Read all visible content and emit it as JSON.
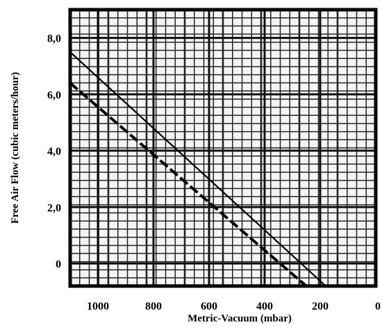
{
  "chart_data": {
    "type": "line",
    "title": "",
    "xlabel": "Metric-Vacuum (mbar)",
    "ylabel": "Free Air Flow (cubic meters/hour)",
    "x_reversed": true,
    "xlim": [
      1100,
      0
    ],
    "ylim": [
      -0.8,
      9.0
    ],
    "x_ticks": [
      {
        "value": 1000,
        "label": "1000"
      },
      {
        "value": 800,
        "label": "800"
      },
      {
        "value": 600,
        "label": "600"
      },
      {
        "value": 400,
        "label": "400"
      },
      {
        "value": 200,
        "label": "200"
      },
      {
        "value": 0,
        "label": "0"
      }
    ],
    "y_ticks": [
      {
        "value": 0,
        "label": "0"
      },
      {
        "value": 2,
        "label": "2,0"
      },
      {
        "value": 4,
        "label": "4,0"
      },
      {
        "value": 6,
        "label": "6,0"
      },
      {
        "value": 8,
        "label": "8,0"
      }
    ],
    "grid": true,
    "series": [
      {
        "style": "solid",
        "x": [
          1100,
          180
        ],
        "y": [
          7.5,
          -0.8
        ]
      },
      {
        "style": "dashed",
        "x": [
          1100,
          250
        ],
        "y": [
          6.4,
          -0.8
        ]
      }
    ]
  }
}
